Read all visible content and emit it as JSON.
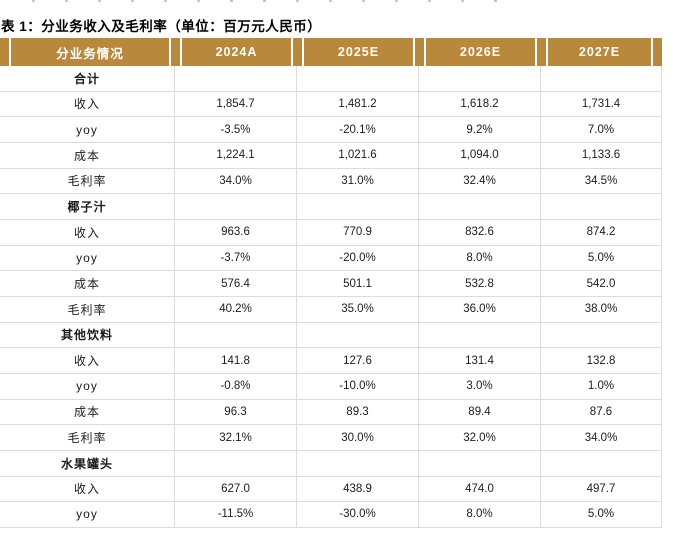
{
  "title": "表 1：分业务收入及毛利率（单位：百万元人民币）",
  "colors": {
    "header_bg": "#B8893C",
    "header_text": "#FFFFFF",
    "grid_line": "#DCDCDC",
    "title_text": "#000000"
  },
  "table": {
    "header": [
      "分业务情况",
      "2024A",
      "2025E",
      "2026E",
      "2027E"
    ],
    "sections": [
      {
        "name": "合计",
        "rows": [
          {
            "label": "收入",
            "values": [
              "1,854.7",
              "1,481.2",
              "1,618.2",
              "1,731.4"
            ]
          },
          {
            "label": "yoy",
            "values": [
              "-3.5%",
              "-20.1%",
              "9.2%",
              "7.0%"
            ]
          },
          {
            "label": "成本",
            "values": [
              "1,224.1",
              "1,021.6",
              "1,094.0",
              "1,133.6"
            ]
          },
          {
            "label": "毛利率",
            "values": [
              "34.0%",
              "31.0%",
              "32.4%",
              "34.5%"
            ]
          }
        ]
      },
      {
        "name": "椰子汁",
        "rows": [
          {
            "label": "收入",
            "values": [
              "963.6",
              "770.9",
              "832.6",
              "874.2"
            ]
          },
          {
            "label": "yoy",
            "values": [
              "-3.7%",
              "-20.0%",
              "8.0%",
              "5.0%"
            ]
          },
          {
            "label": "成本",
            "values": [
              "576.4",
              "501.1",
              "532.8",
              "542.0"
            ]
          },
          {
            "label": "毛利率",
            "values": [
              "40.2%",
              "35.0%",
              "36.0%",
              "38.0%"
            ]
          }
        ]
      },
      {
        "name": "其他饮料",
        "rows": [
          {
            "label": "收入",
            "values": [
              "141.8",
              "127.6",
              "131.4",
              "132.8"
            ]
          },
          {
            "label": "yoy",
            "values": [
              "-0.8%",
              "-10.0%",
              "3.0%",
              "1.0%"
            ]
          },
          {
            "label": "成本",
            "values": [
              "96.3",
              "89.3",
              "89.4",
              "87.6"
            ]
          },
          {
            "label": "毛利率",
            "values": [
              "32.1%",
              "30.0%",
              "32.0%",
              "34.0%"
            ]
          }
        ]
      },
      {
        "name": "水果罐头",
        "rows": [
          {
            "label": "收入",
            "values": [
              "627.0",
              "438.9",
              "474.0",
              "497.7"
            ]
          },
          {
            "label": "yoy",
            "values": [
              "-11.5%",
              "-30.0%",
              "8.0%",
              "5.0%"
            ]
          }
        ]
      }
    ]
  }
}
